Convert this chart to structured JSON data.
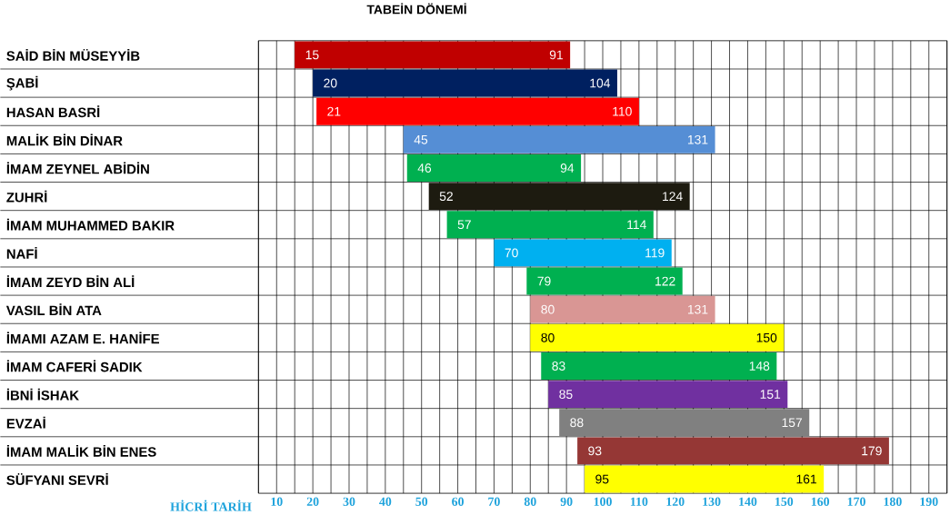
{
  "chart_data": {
    "type": "bar",
    "orientation": "horizontal",
    "title": "TABEİN DÖNEMİ",
    "xlabel": "HİCRİ TARİH",
    "categories": [
      "SAİD BİN MÜSEYYİB",
      "ŞABİ",
      "HASAN BASRİ",
      "MALİK BİN DİNAR",
      "İMAM ZEYNEL ABİDİN",
      "ZUHRİ",
      "İMAM MUHAMMED BAKIR",
      "NAFİ",
      "İMAM ZEYD BİN ALİ",
      "VASIL BİN ATA",
      "İMAMI AZAM E. HANİFE",
      "İMAM CAFERİ SADIK",
      "İBNİ İSHAK",
      "EVZAİ",
      "İMAM MALİK BİN ENES",
      "SÜFYANI SEVRİ"
    ],
    "base": [
      15,
      20,
      21,
      45,
      46,
      52,
      57,
      70,
      79,
      80,
      80,
      83,
      85,
      88,
      93,
      95
    ],
    "values": [
      76,
      84,
      89,
      86,
      48,
      72,
      57,
      49,
      43,
      51,
      70,
      65,
      66,
      69,
      86,
      66
    ],
    "colors": [
      "#c00000",
      "#002060",
      "#ff0000",
      "#558ed5",
      "#00b050",
      "#1d1b10",
      "#00b050",
      "#00b0f0",
      "#00b050",
      "#d99694",
      "#ffff00",
      "#00b050",
      "#7030a0",
      "#808080",
      "#953735",
      "#ffff00"
    ],
    "xlim": [
      5,
      195
    ],
    "xticks": [
      {
        "value": 5,
        "label": null
      },
      10,
      {
        "value": 15,
        "label": null
      },
      20,
      {
        "value": 25,
        "label": null
      },
      30,
      {
        "value": 35,
        "label": null
      },
      40,
      {
        "value": 45,
        "label": null
      },
      50,
      {
        "value": 55,
        "label": null
      },
      60,
      {
        "value": 65,
        "label": null
      },
      70,
      {
        "value": 75,
        "label": null
      },
      80,
      {
        "value": 85,
        "label": null
      },
      90,
      {
        "value": 95,
        "label": null
      },
      100,
      {
        "value": 105,
        "label": null
      },
      110,
      {
        "value": 115,
        "label": null
      },
      120,
      {
        "value": 125,
        "label": null
      },
      130,
      {
        "value": 135,
        "label": null
      },
      140,
      {
        "value": 145,
        "label": null
      },
      150,
      {
        "value": 155,
        "label": null
      },
      160,
      {
        "value": 165,
        "label": null
      },
      170,
      {
        "value": 175,
        "label": null
      },
      180,
      {
        "value": 185,
        "label": null
      },
      190,
      {
        "value": 195,
        "label": null
      }
    ],
    "grid": true,
    "annotations": [
      {
        "text": "15",
        "x": 15,
        "y": "SAİD BİN MÜSEYYİB"
      },
      {
        "text": "91",
        "x": 91,
        "y": "SAİD BİN MÜSEYYİB"
      },
      {
        "text": "20",
        "x": 20,
        "y": "ŞABİ"
      },
      {
        "text": "104",
        "x": 104,
        "y": "ŞABİ"
      },
      {
        "text": "21",
        "x": 21,
        "y": "HASAN BASRİ"
      },
      {
        "text": "110",
        "x": 110,
        "y": "HASAN BASRİ"
      },
      {
        "text": "45",
        "x": 45,
        "y": "MALİK BİN DİNAR"
      },
      {
        "text": "131",
        "x": 131,
        "y": "MALİK BİN DİNAR"
      },
      {
        "text": "46",
        "x": 46,
        "y": "İMAM ZEYNEL ABİDİN"
      },
      {
        "text": "94",
        "x": 94,
        "y": "İMAM ZEYNEL ABİDİN"
      },
      {
        "text": "52",
        "x": 52,
        "y": "ZUHRİ"
      },
      {
        "text": "124",
        "x": 124,
        "y": "ZUHRİ"
      },
      {
        "text": "57",
        "x": 57,
        "y": "İMAM MUHAMMED BAKIR"
      },
      {
        "text": "114",
        "x": 114,
        "y": "İMAM MUHAMMED BAKIR"
      },
      {
        "text": "70",
        "x": 70,
        "y": "NAFİ"
      },
      {
        "text": "119",
        "x": 119,
        "y": "NAFİ"
      },
      {
        "text": "79",
        "x": 79,
        "y": "İMAM ZEYD BİN ALİ"
      },
      {
        "text": "122",
        "x": 122,
        "y": "İMAM ZEYD BİN ALİ"
      },
      {
        "text": "80",
        "x": 80,
        "y": "VASIL BİN ATA"
      },
      {
        "text": "131",
        "x": 131,
        "y": "VASIL BİN ATA"
      },
      {
        "text": "80",
        "x": 80,
        "y": "İMAMI AZAM E. HANİFE"
      },
      {
        "text": "150",
        "x": 150,
        "y": "İMAMI AZAM E. HANİFE"
      },
      {
        "text": "83",
        "x": 83,
        "y": "İMAM CAFERİ SADIK"
      },
      {
        "text": "148",
        "x": 148,
        "y": "İMAM CAFERİ SADIK"
      },
      {
        "text": "85",
        "x": 85,
        "y": "İBNİ İSHAK"
      },
      {
        "text": "151",
        "x": 151,
        "y": "İBNİ İSHAK"
      },
      {
        "text": "88",
        "x": 88,
        "y": "EVZAİ"
      },
      {
        "text": "157",
        "x": 157,
        "y": "EVZAİ"
      },
      {
        "text": "93",
        "x": 93,
        "y": "İMAM MALİK BİN ENES"
      },
      {
        "text": "179",
        "x": 179,
        "y": "İMAM MALİK BİN ENES"
      },
      {
        "text": "95",
        "x": 95,
        "y": "SÜFYANI SEVRİ"
      },
      {
        "text": "161",
        "x": 161,
        "y": "SÜFYANI SEVRİ"
      }
    ]
  }
}
